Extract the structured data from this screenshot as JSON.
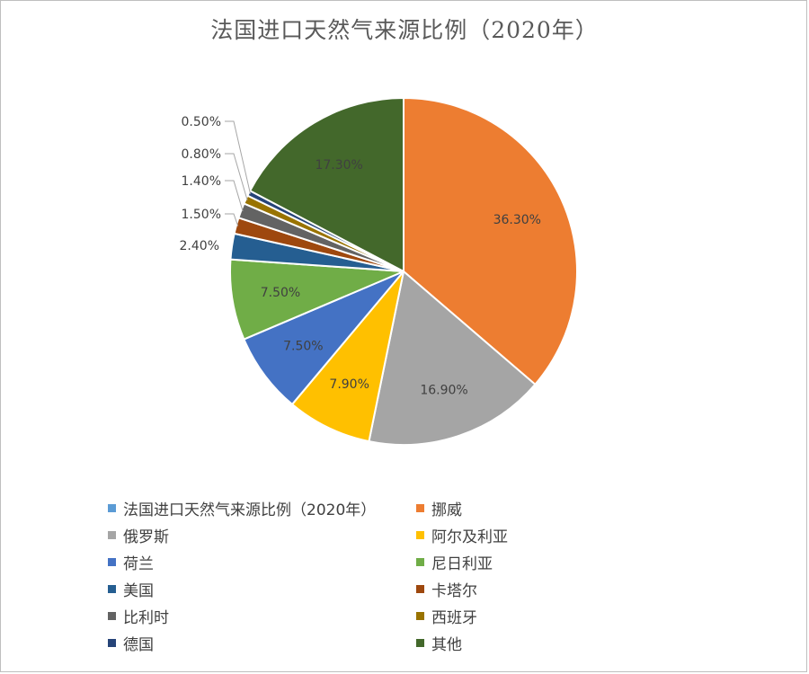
{
  "chart_data": {
    "type": "pie",
    "title": "法国进口天然气来源比例（2020年）",
    "series_name": "法国进口天然气来源比例（2020年）",
    "series_color": "#5b9bd5",
    "slices": [
      {
        "label": "挪威",
        "value": 36.3,
        "display": "36.30%",
        "color": "#ed7d31"
      },
      {
        "label": "俄罗斯",
        "value": 16.9,
        "display": "16.90%",
        "color": "#a5a5a5"
      },
      {
        "label": "阿尔及利亚",
        "value": 7.9,
        "display": "7.90%",
        "color": "#ffc000"
      },
      {
        "label": "荷兰",
        "value": 7.5,
        "display": "7.50%",
        "color": "#4472c4"
      },
      {
        "label": "尼日利亚",
        "value": 7.5,
        "display": "7.50%",
        "color": "#70ad47"
      },
      {
        "label": "美国",
        "value": 2.4,
        "display": "2.40%",
        "color": "#255e91"
      },
      {
        "label": "卡塔尔",
        "value": 1.5,
        "display": "1.50%",
        "color": "#9e480e"
      },
      {
        "label": "比利时",
        "value": 1.4,
        "display": "1.40%",
        "color": "#636363"
      },
      {
        "label": "西班牙",
        "value": 0.8,
        "display": "0.80%",
        "color": "#997300"
      },
      {
        "label": "德国",
        "value": 0.5,
        "display": "0.50%",
        "color": "#264478"
      },
      {
        "label": "其他",
        "value": 17.3,
        "display": "17.30%",
        "color": "#43682b"
      }
    ],
    "legend_position": "bottom"
  }
}
